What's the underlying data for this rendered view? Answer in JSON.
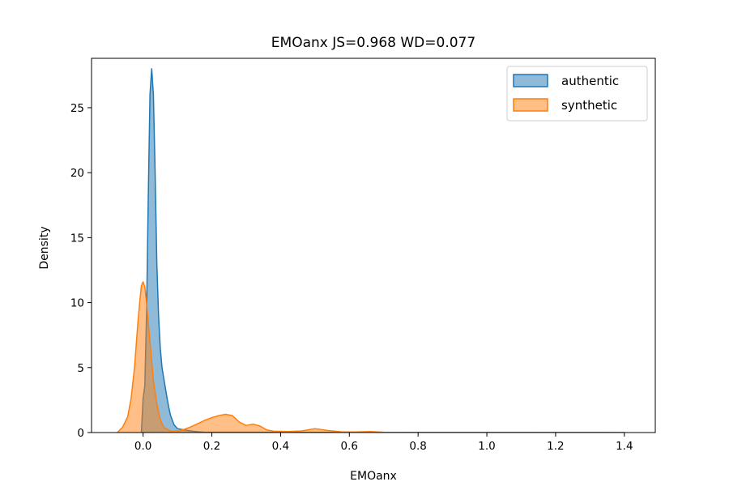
{
  "chart_data": {
    "type": "area",
    "title": "EMOanx  JS=0.968  WD=0.077",
    "xlabel": "EMOanx",
    "ylabel": "Density",
    "xlim": [
      -0.15,
      1.49
    ],
    "ylim": [
      0,
      28.8
    ],
    "xticks": [
      0.0,
      0.2,
      0.4,
      0.6,
      0.8,
      1.0,
      1.2,
      1.4
    ],
    "xtick_labels": [
      "0.0",
      "0.2",
      "0.4",
      "0.6",
      "0.8",
      "1.0",
      "1.2",
      "1.4"
    ],
    "yticks": [
      0,
      5,
      10,
      15,
      20,
      25
    ],
    "ytick_labels": [
      "0",
      "5",
      "10",
      "15",
      "20",
      "25"
    ],
    "grid": false,
    "legend_position": "top-right",
    "series": [
      {
        "name": "authentic",
        "color": "#1f77b4",
        "fill": "#1f77b4",
        "x": [
          -0.005,
          0.0,
          0.005,
          0.01,
          0.015,
          0.02,
          0.025,
          0.03,
          0.035,
          0.04,
          0.045,
          0.05,
          0.055,
          0.06,
          0.065,
          0.07,
          0.075,
          0.08,
          0.09,
          0.1,
          0.12,
          0.14,
          0.16,
          0.18,
          1.4
        ],
        "y": [
          0.0,
          2.6,
          3.6,
          9.0,
          18.0,
          26.0,
          28.0,
          26.0,
          20.0,
          13.0,
          9.0,
          6.5,
          5.0,
          4.2,
          3.4,
          2.6,
          1.9,
          1.3,
          0.6,
          0.3,
          0.2,
          0.12,
          0.06,
          0.02,
          0.0
        ]
      },
      {
        "name": "synthetic",
        "color": "#ff7f0e",
        "fill": "#ffbb78",
        "x": [
          -0.075,
          -0.06,
          -0.045,
          -0.035,
          -0.025,
          -0.015,
          -0.01,
          -0.005,
          0.0,
          0.005,
          0.01,
          0.015,
          0.02,
          0.025,
          0.03,
          0.04,
          0.05,
          0.06,
          0.08,
          0.1,
          0.12,
          0.14,
          0.16,
          0.18,
          0.2,
          0.22,
          0.24,
          0.26,
          0.28,
          0.3,
          0.32,
          0.34,
          0.36,
          0.38,
          0.42,
          0.46,
          0.5,
          0.54,
          0.58,
          0.62,
          0.66,
          0.7,
          0.8,
          1.0,
          1.2,
          1.4
        ],
        "y": [
          0.0,
          0.4,
          1.2,
          2.6,
          5.0,
          8.5,
          10.0,
          11.3,
          11.6,
          11.2,
          10.0,
          8.5,
          7.0,
          5.5,
          4.0,
          2.2,
          1.0,
          0.4,
          0.1,
          0.1,
          0.25,
          0.45,
          0.7,
          0.95,
          1.15,
          1.3,
          1.4,
          1.3,
          0.8,
          0.55,
          0.65,
          0.5,
          0.2,
          0.1,
          0.08,
          0.12,
          0.3,
          0.15,
          0.05,
          0.05,
          0.08,
          0.02,
          0.01,
          0.01,
          0.005,
          0.0
        ]
      }
    ]
  }
}
